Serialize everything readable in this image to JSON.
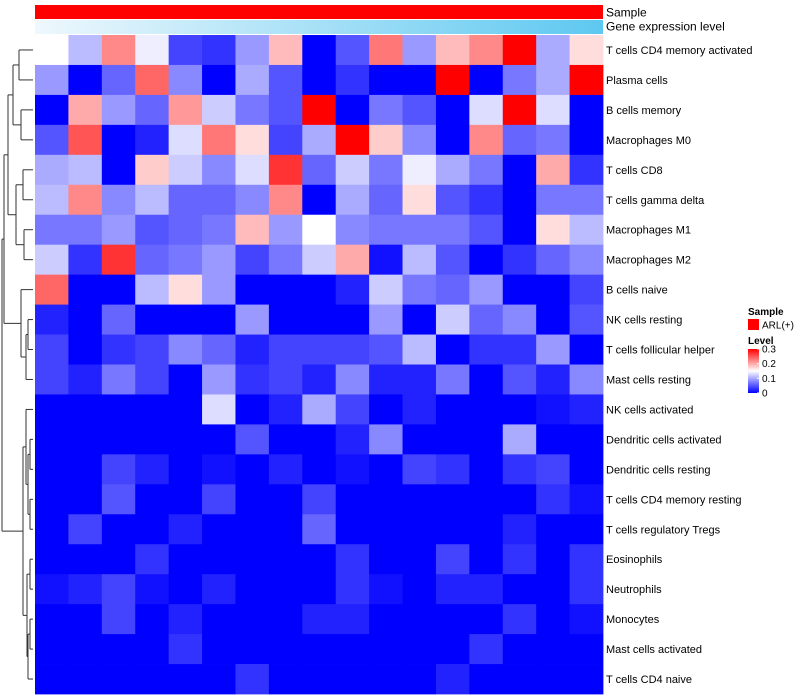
{
  "chart_data": {
    "type": "heatmap",
    "annotation_rows": {
      "sample_label": "Sample",
      "expression_label": "Gene expression level"
    },
    "legend": {
      "sample_title": "Sample",
      "sample_entry": "ARL(+)",
      "sample_color": "#ff0000",
      "level_title": "Level",
      "level_ticks": [
        "0.3",
        "0.2",
        "0.1",
        "0"
      ],
      "level_range": [
        0,
        0.3
      ]
    },
    "color_scale": {
      "low": "#0000ff",
      "mid": "#ffffff",
      "high": "#ff0000",
      "mid_value": 0.15
    },
    "expression_gradient": {
      "start": "#eef8fd",
      "end": "#5ec8f0"
    },
    "rows": [
      "T cells CD4 memory activated",
      "Plasma cells",
      "B cells memory",
      "Macrophages M0",
      "T cells CD8",
      "T cells gamma delta",
      "Macrophages M1",
      "Macrophages M2",
      "B cells naive",
      "NK cells resting",
      "T cells follicular helper",
      "Mast cells resting",
      "NK cells activated",
      "Dendritic cells activated",
      "Dendritic cells resting",
      "T cells CD4 memory resting",
      "T cells regulatory  Tregs",
      "Eosinophils",
      "Neutrophils",
      "Monocytes",
      "Mast cells activated",
      "T cells CD4 naive"
    ],
    "values": [
      [
        0.15,
        0.11,
        0.22,
        0.14,
        0.04,
        0.03,
        0.09,
        0.19,
        0.0,
        0.05,
        0.23,
        0.09,
        0.19,
        0.22,
        0.3,
        0.1,
        0.17
      ],
      [
        0.09,
        0.0,
        0.06,
        0.24,
        0.08,
        0.0,
        0.1,
        0.05,
        0.0,
        0.03,
        0.0,
        0.0,
        0.3,
        0.0,
        0.07,
        0.1,
        0.3
      ],
      [
        0.0,
        0.2,
        0.09,
        0.06,
        0.21,
        0.12,
        0.07,
        0.05,
        0.3,
        0.0,
        0.07,
        0.05,
        0.0,
        0.13,
        0.3,
        0.13,
        0.0
      ],
      [
        0.05,
        0.25,
        0.0,
        0.02,
        0.13,
        0.23,
        0.17,
        0.04,
        0.1,
        0.3,
        0.18,
        0.08,
        0.0,
        0.22,
        0.06,
        0.07,
        0.0
      ],
      [
        0.1,
        0.11,
        0.0,
        0.18,
        0.12,
        0.08,
        0.13,
        0.27,
        0.06,
        0.12,
        0.07,
        0.14,
        0.1,
        0.07,
        0.0,
        0.2,
        0.03
      ],
      [
        0.11,
        0.22,
        0.08,
        0.11,
        0.06,
        0.06,
        0.08,
        0.22,
        0.0,
        0.1,
        0.06,
        0.17,
        0.05,
        0.03,
        0.0,
        0.07,
        0.07
      ],
      [
        0.07,
        0.07,
        0.09,
        0.05,
        0.06,
        0.07,
        0.19,
        0.09,
        0.15,
        0.08,
        0.07,
        0.07,
        0.07,
        0.05,
        0.0,
        0.17,
        0.11
      ],
      [
        0.12,
        0.03,
        0.27,
        0.06,
        0.07,
        0.09,
        0.04,
        0.07,
        0.12,
        0.2,
        0.01,
        0.11,
        0.05,
        0.0,
        0.03,
        0.06,
        0.08
      ],
      [
        0.24,
        0.0,
        0.0,
        0.11,
        0.17,
        0.09,
        0.0,
        0.0,
        0.0,
        0.02,
        0.12,
        0.07,
        0.06,
        0.09,
        0.0,
        0.0,
        0.04
      ],
      [
        0.02,
        0.0,
        0.06,
        0.0,
        0.0,
        0.0,
        0.09,
        0.0,
        0.0,
        0.0,
        0.09,
        0.0,
        0.12,
        0.06,
        0.08,
        0.0,
        0.05
      ],
      [
        0.04,
        0.0,
        0.03,
        0.04,
        0.08,
        0.06,
        0.02,
        0.04,
        0.04,
        0.04,
        0.05,
        0.11,
        0.0,
        0.03,
        0.03,
        0.09,
        0.0
      ],
      [
        0.04,
        0.02,
        0.07,
        0.04,
        0.0,
        0.09,
        0.03,
        0.04,
        0.02,
        0.08,
        0.02,
        0.02,
        0.07,
        0.0,
        0.05,
        0.02,
        0.08
      ],
      [
        0.0,
        0.0,
        0.0,
        0.0,
        0.0,
        0.13,
        0.0,
        0.02,
        0.1,
        0.04,
        0.0,
        0.02,
        0.0,
        0.0,
        0.0,
        0.01,
        0.02
      ],
      [
        0.0,
        0.0,
        0.0,
        0.0,
        0.0,
        0.0,
        0.05,
        0.0,
        0.0,
        0.02,
        0.08,
        0.0,
        0.0,
        0.0,
        0.1,
        0.0,
        0.0
      ],
      [
        0.0,
        0.0,
        0.04,
        0.02,
        0.0,
        0.01,
        0.0,
        0.02,
        0.0,
        0.01,
        0.0,
        0.04,
        0.03,
        0.0,
        0.03,
        0.04,
        0.0
      ],
      [
        0.0,
        0.0,
        0.05,
        0.0,
        0.0,
        0.04,
        0.0,
        0.0,
        0.04,
        0.0,
        0.0,
        0.0,
        0.0,
        0.0,
        0.0,
        0.03,
        0.01
      ],
      [
        0.0,
        0.04,
        0.0,
        0.0,
        0.02,
        0.0,
        0.0,
        0.0,
        0.06,
        0.0,
        0.0,
        0.0,
        0.0,
        0.0,
        0.02,
        0.0,
        0.0
      ],
      [
        0.0,
        0.0,
        0.0,
        0.03,
        0.0,
        0.0,
        0.0,
        0.0,
        0.0,
        0.03,
        0.0,
        0.0,
        0.04,
        0.0,
        0.03,
        0.0,
        0.03
      ],
      [
        0.01,
        0.02,
        0.04,
        0.01,
        0.0,
        0.02,
        0.0,
        0.0,
        0.0,
        0.03,
        0.01,
        0.0,
        0.02,
        0.02,
        0.0,
        0.0,
        0.03
      ],
      [
        0.0,
        0.0,
        0.04,
        0.0,
        0.02,
        0.0,
        0.0,
        0.0,
        0.02,
        0.02,
        0.0,
        0.0,
        0.0,
        0.0,
        0.03,
        0.0,
        0.01
      ],
      [
        0.0,
        0.0,
        0.0,
        0.0,
        0.03,
        0.0,
        0.0,
        0.0,
        0.0,
        0.0,
        0.0,
        0.0,
        0.0,
        0.03,
        0.0,
        0.0,
        0.0
      ],
      [
        0.0,
        0.0,
        0.0,
        0.0,
        0.0,
        0.0,
        0.03,
        0.0,
        0.0,
        0.0,
        0.0,
        0.0,
        0.02,
        0.0,
        0.0,
        0.0,
        0.0
      ]
    ]
  }
}
